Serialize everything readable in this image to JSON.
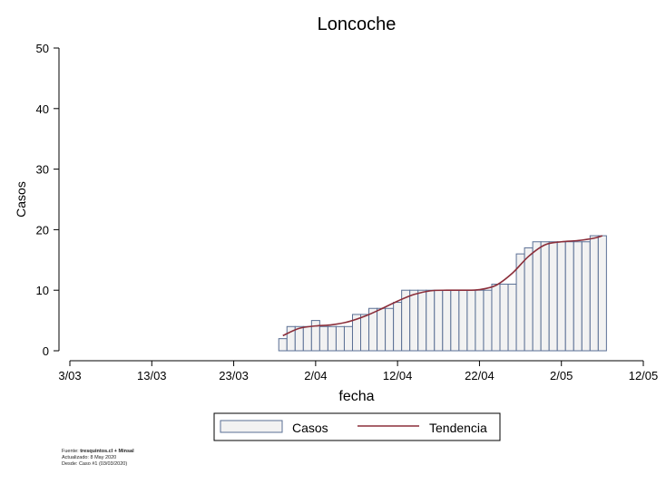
{
  "chart_data": {
    "type": "bar",
    "title": "Loncoche",
    "xlabel": "fecha",
    "ylabel": "Casos",
    "ylim": [
      0,
      50
    ],
    "yticks": [
      0,
      10,
      20,
      30,
      40,
      50
    ],
    "xlim": [
      "2020-03-03",
      "2020-05-12"
    ],
    "xticks": [
      {
        "date": "2020-03-03",
        "label": "3/03"
      },
      {
        "date": "2020-03-13",
        "label": "13/03"
      },
      {
        "date": "2020-03-23",
        "label": "23/03"
      },
      {
        "date": "2020-04-02",
        "label": "2/04"
      },
      {
        "date": "2020-04-12",
        "label": "12/04"
      },
      {
        "date": "2020-04-22",
        "label": "22/04"
      },
      {
        "date": "2020-05-02",
        "label": "2/05"
      },
      {
        "date": "2020-05-12",
        "label": "12/05"
      }
    ],
    "legend": {
      "position": "bottom",
      "items": [
        "Casos",
        "Tendencia"
      ]
    },
    "colors": {
      "bar_fill": "#f2f2f2",
      "bar_stroke": "#5a6f94",
      "trend": "#8b2e3a"
    },
    "series": [
      {
        "name": "Casos",
        "type": "bar",
        "x": [
          "2020-03-29",
          "2020-03-30",
          "2020-03-31",
          "2020-04-01",
          "2020-04-02",
          "2020-04-03",
          "2020-04-04",
          "2020-04-05",
          "2020-04-06",
          "2020-04-07",
          "2020-04-08",
          "2020-04-09",
          "2020-04-10",
          "2020-04-11",
          "2020-04-12",
          "2020-04-13",
          "2020-04-14",
          "2020-04-15",
          "2020-04-16",
          "2020-04-17",
          "2020-04-18",
          "2020-04-19",
          "2020-04-20",
          "2020-04-21",
          "2020-04-22",
          "2020-04-23",
          "2020-04-24",
          "2020-04-25",
          "2020-04-26",
          "2020-04-27",
          "2020-04-28",
          "2020-04-29",
          "2020-04-30",
          "2020-05-01",
          "2020-05-02",
          "2020-05-03",
          "2020-05-04",
          "2020-05-05",
          "2020-05-06",
          "2020-05-07"
        ],
        "values": [
          2,
          4,
          4,
          4,
          5,
          4,
          4,
          4,
          4,
          6,
          6,
          7,
          7,
          7,
          8,
          10,
          10,
          10,
          10,
          10,
          10,
          10,
          10,
          10,
          10,
          10,
          11,
          11,
          11,
          16,
          17,
          18,
          18,
          18,
          18,
          18,
          18,
          18,
          19,
          19
        ]
      },
      {
        "name": "Tendencia",
        "type": "line",
        "x": [
          "2020-03-29",
          "2020-03-31",
          "2020-04-02",
          "2020-04-04",
          "2020-04-06",
          "2020-04-08",
          "2020-04-10",
          "2020-04-12",
          "2020-04-14",
          "2020-04-16",
          "2020-04-18",
          "2020-04-20",
          "2020-04-22",
          "2020-04-24",
          "2020-04-26",
          "2020-04-28",
          "2020-04-30",
          "2020-05-02",
          "2020-05-04",
          "2020-05-06",
          "2020-05-07"
        ],
        "values": [
          2.5,
          3.7,
          4.1,
          4.3,
          4.8,
          5.7,
          6.9,
          8.2,
          9.3,
          9.9,
          10.0,
          10.0,
          10.1,
          10.8,
          12.8,
          15.6,
          17.5,
          18.0,
          18.2,
          18.6,
          19.0
        ]
      }
    ]
  },
  "footer": {
    "source_label": "Fuente:",
    "source_value": "tresquintos.cl + Minsal",
    "updated": "Actualizado: 8 May 2020",
    "since": "Desde: Caso #1  (03/03/2020)"
  }
}
